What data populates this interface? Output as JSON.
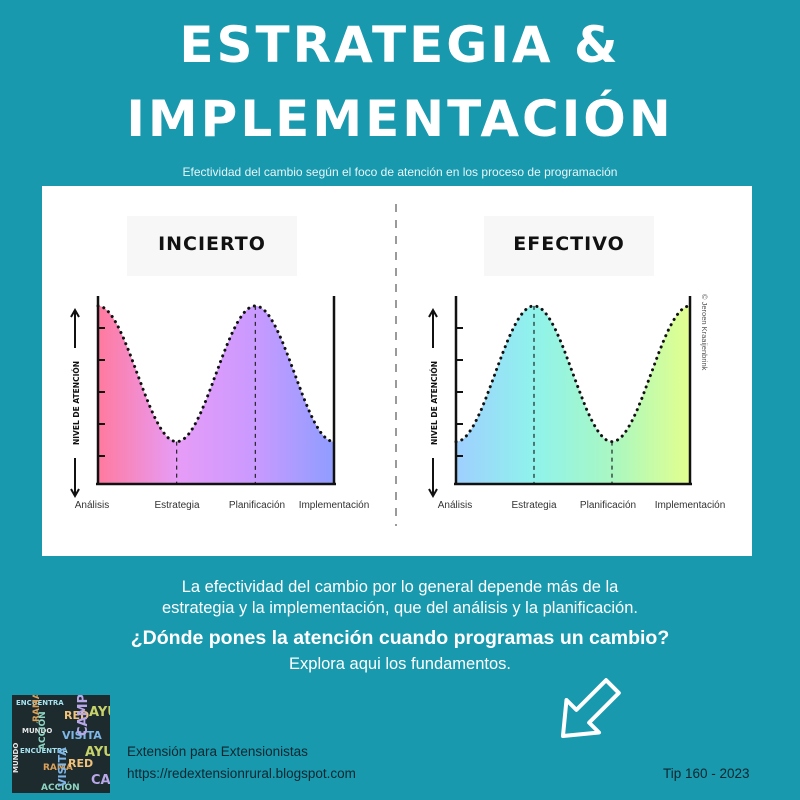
{
  "header": {
    "title_line1": "ESTRATEGIA &",
    "title_line2": "IMPLEMENTACIÓN",
    "subtitle": "Efectividad del cambio según el foco de atención en los proceso de programación"
  },
  "charts": [
    {
      "heading": "INCIERTO",
      "ylabel": "NIVEL DE ATENCIÓN",
      "stages": [
        "Análisis",
        "Estrategia",
        "Planificación",
        "Implementación"
      ],
      "attention_levels": [
        0.85,
        0.12,
        0.85,
        0.12
      ],
      "gradient": [
        "#ff7a9e",
        "#e79cf7",
        "#c99aff",
        "#8f9dff"
      ]
    },
    {
      "heading": "EFECTIVO",
      "ylabel": "NIVEL DE ATENCIÓN",
      "stages": [
        "Análisis",
        "Estrategia",
        "Planificación",
        "Implementación"
      ],
      "attention_levels": [
        0.12,
        0.85,
        0.12,
        0.85
      ],
      "gradient": [
        "#9fcfff",
        "#8ff3ec",
        "#a9f7c2",
        "#e3ff8e"
      ]
    }
  ],
  "credit": "© Jeroen Kraaijenbrink",
  "body": {
    "line1": "La efectividad del cambio por lo general depende más de la",
    "line2": "estrategia y la implementación, que del análisis y la planificación.",
    "question": "¿Dónde pones la atención cuando programas un cambio?",
    "explore": "Explora aqui los fundamentos."
  },
  "footer": {
    "brand": "Extensión para Extensionistas",
    "url": "https://redextensionrural.blogspot.com",
    "tip": "Tip 160 - 2023"
  },
  "logo_words": [
    "ENCUENTRA",
    "RAMA",
    "VISITA",
    "AYUDA",
    "MUNDO",
    "ACCIÓN",
    "RED",
    "CAMPO"
  ]
}
